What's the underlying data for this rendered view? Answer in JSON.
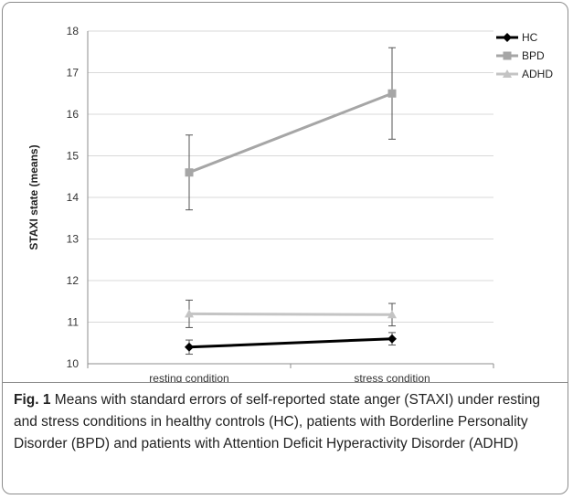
{
  "chart_data": {
    "type": "line",
    "categories": [
      "resting condition",
      "stress condition"
    ],
    "ylabel": "STAXI state (means)",
    "xlabel": "",
    "ylim": [
      10,
      18
    ],
    "yticks": [
      10,
      11,
      12,
      13,
      14,
      15,
      16,
      17,
      18
    ],
    "grid": true,
    "legend_position": "top-right",
    "series": [
      {
        "name": "HC",
        "values": [
          10.4,
          10.6
        ],
        "errors": [
          0.17,
          0.15
        ],
        "color": "#000000",
        "marker": "diamond"
      },
      {
        "name": "BPD",
        "values": [
          14.6,
          16.5
        ],
        "errors": [
          0.9,
          1.1
        ],
        "color": "#a6a6a6",
        "marker": "square"
      },
      {
        "name": "ADHD",
        "values": [
          11.2,
          11.18
        ],
        "errors": [
          0.33,
          0.27
        ],
        "color": "#c4c4c4",
        "marker": "triangle"
      }
    ]
  },
  "caption": {
    "label": "Fig. 1",
    "text": " Means with standard errors of self-reported state anger (STAXI) under resting and stress conditions in healthy controls (HC), patients with Borderline Personality Disorder (BPD) and patients with Attention Deficit Hyperactivity Disorder (ADHD)"
  }
}
